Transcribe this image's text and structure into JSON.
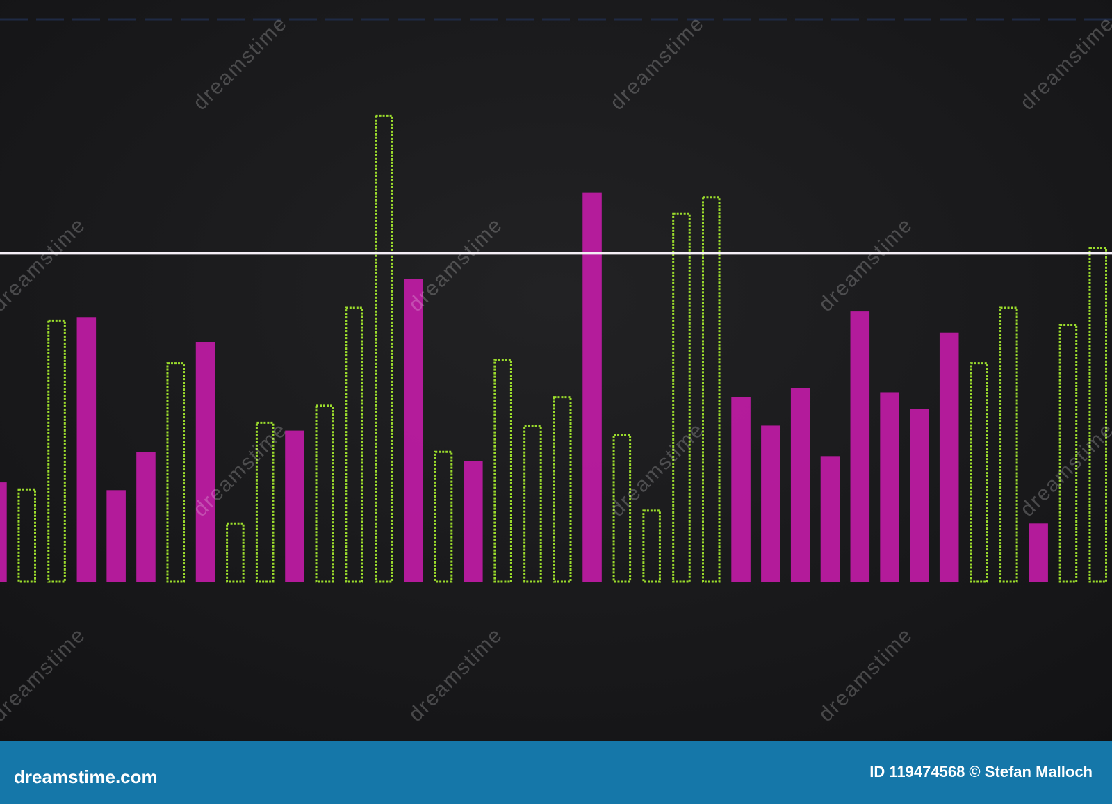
{
  "chart_data": {
    "type": "bar",
    "values": [
      140,
      130,
      368,
      373,
      129,
      183,
      308,
      338,
      82,
      224,
      213,
      248,
      386,
      657,
      427,
      183,
      170,
      313,
      219,
      260,
      548,
      207,
      100,
      519,
      542,
      260,
      220,
      273,
      177,
      381,
      267,
      243,
      351,
      308,
      386,
      82,
      362,
      470
    ],
    "bar_styles": [
      "filled",
      "outline",
      "outline",
      "filled",
      "filled",
      "filled",
      "outline",
      "filled",
      "outline",
      "outline",
      "filled",
      "outline",
      "outline",
      "outline",
      "filled",
      "outline",
      "filled",
      "outline",
      "outline",
      "outline",
      "filled",
      "outline",
      "outline",
      "outline",
      "outline",
      "filled",
      "filled",
      "filled",
      "filled",
      "filled",
      "filled",
      "filled",
      "filled",
      "outline",
      "outline",
      "filled",
      "outline",
      "outline"
    ],
    "colors": {
      "filled": "#c41ca8",
      "outline": "#9bdc2c"
    },
    "reference_line": 463,
    "ylim": [
      0,
      820
    ]
  },
  "watermark": "dreamstime",
  "footer": {
    "site": "dreamstime.com",
    "credit": "ID 119474568 © Stefan Malloch"
  }
}
